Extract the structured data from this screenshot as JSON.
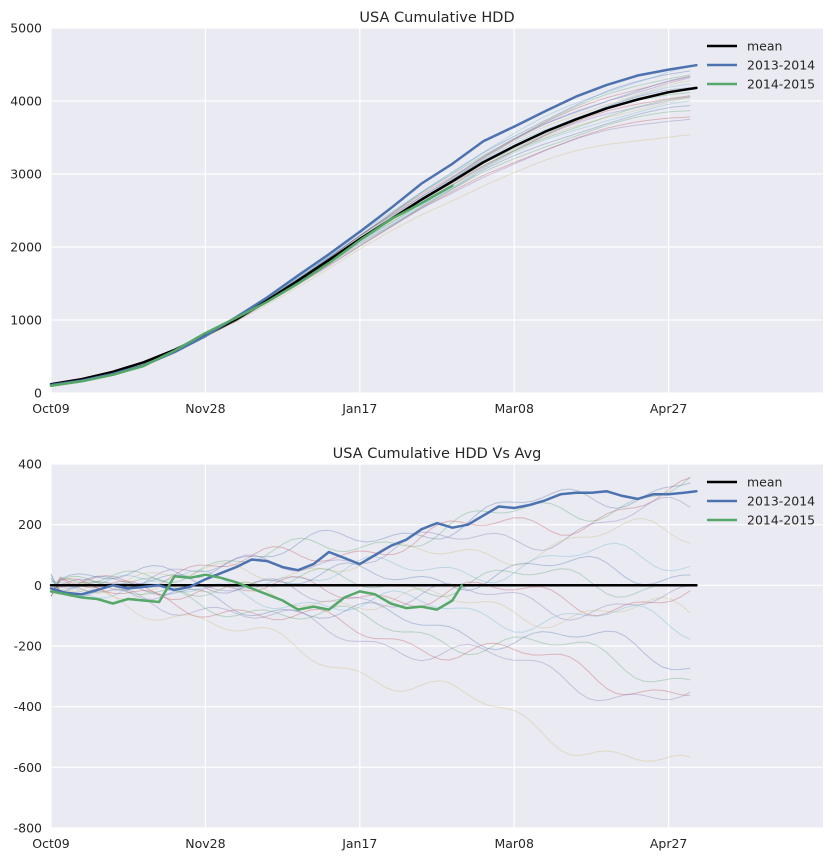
{
  "chart_data": [
    {
      "type": "line",
      "title": "USA Cumulative HDD",
      "xlabel": "",
      "ylabel": "",
      "x_unit": "days since Oct09",
      "xlim": [
        0,
        250
      ],
      "ylim": [
        0,
        5000
      ],
      "xticks": [
        {
          "label": "Oct09",
          "value": 0
        },
        {
          "label": "Nov28",
          "value": 50
        },
        {
          "label": "Jan17",
          "value": 100
        },
        {
          "label": "Mar08",
          "value": 150
        },
        {
          "label": "Apr27",
          "value": 200
        }
      ],
      "yticks": [
        0,
        1000,
        2000,
        3000,
        4000,
        5000
      ],
      "grid": true,
      "legend_position": "top-right",
      "series": [
        {
          "name": "mean",
          "color": "#000000",
          "x": [
            0,
            10,
            20,
            30,
            40,
            50,
            60,
            70,
            80,
            90,
            100,
            110,
            120,
            130,
            140,
            150,
            160,
            170,
            180,
            190,
            200,
            209
          ],
          "values": [
            120,
            190,
            290,
            420,
            590,
            790,
            1010,
            1270,
            1540,
            1820,
            2110,
            2380,
            2650,
            2900,
            3160,
            3380,
            3580,
            3750,
            3900,
            4020,
            4120,
            4180
          ]
        },
        {
          "name": "2013-2014",
          "color": "#4c72b0",
          "x": [
            0,
            10,
            20,
            30,
            40,
            50,
            60,
            70,
            80,
            90,
            100,
            110,
            120,
            130,
            140,
            150,
            160,
            170,
            180,
            190,
            200,
            209
          ],
          "values": [
            110,
            170,
            260,
            380,
            560,
            780,
            1040,
            1310,
            1610,
            1900,
            2210,
            2530,
            2870,
            3140,
            3450,
            3650,
            3860,
            4060,
            4220,
            4350,
            4430,
            4490
          ]
        },
        {
          "name": "2014-2015",
          "color": "#55a868",
          "x": [
            0,
            10,
            20,
            30,
            40,
            50,
            60,
            70,
            80,
            90,
            100,
            110,
            120,
            130
          ],
          "values": [
            100,
            160,
            250,
            370,
            580,
            820,
            1030,
            1250,
            1500,
            1780,
            2090,
            2380,
            2600,
            2840
          ]
        }
      ],
      "background_series_colors": [
        "#4c72b0",
        "#55a868",
        "#c44e52",
        "#8172b2",
        "#ccb974",
        "#64b5cd"
      ],
      "background_series_final_values": [
        4450,
        4400,
        4360,
        4320,
        4270,
        4230,
        4200,
        4150,
        4110,
        4080,
        4040,
        3990,
        3930,
        3880,
        3810,
        3780,
        3550,
        4480,
        4330,
        4050
      ]
    },
    {
      "type": "line",
      "title": "USA Cumulative HDD Vs Avg",
      "xlabel": "",
      "ylabel": "",
      "x_unit": "days since Oct09",
      "xlim": [
        0,
        250
      ],
      "ylim": [
        -800,
        400
      ],
      "xticks": [
        {
          "label": "Oct09",
          "value": 0
        },
        {
          "label": "Nov28",
          "value": 50
        },
        {
          "label": "Jan17",
          "value": 100
        },
        {
          "label": "Mar08",
          "value": 150
        },
        {
          "label": "Apr27",
          "value": 200
        }
      ],
      "yticks": [
        -800,
        -600,
        -400,
        -200,
        0,
        200,
        400
      ],
      "grid": true,
      "legend_position": "top-right",
      "series": [
        {
          "name": "mean",
          "color": "#000000",
          "x": [
            0,
            209
          ],
          "values": [
            0,
            0
          ]
        },
        {
          "name": "2013-2014",
          "color": "#4c72b0",
          "x": [
            0,
            5,
            10,
            15,
            20,
            25,
            30,
            35,
            40,
            45,
            50,
            55,
            60,
            65,
            70,
            75,
            80,
            85,
            90,
            95,
            100,
            105,
            110,
            115,
            120,
            125,
            130,
            135,
            140,
            145,
            150,
            155,
            160,
            165,
            170,
            175,
            180,
            185,
            190,
            195,
            200,
            205,
            209
          ],
          "values": [
            -10,
            -25,
            -30,
            -15,
            0,
            -10,
            -5,
            0,
            -15,
            -5,
            20,
            40,
            60,
            85,
            80,
            60,
            50,
            70,
            110,
            90,
            70,
            100,
            130,
            150,
            185,
            205,
            190,
            200,
            230,
            260,
            255,
            265,
            280,
            300,
            305,
            305,
            310,
            295,
            285,
            300,
            300,
            305,
            310
          ]
        },
        {
          "name": "2014-2015",
          "color": "#55a868",
          "x": [
            0,
            5,
            10,
            15,
            20,
            25,
            30,
            35,
            40,
            45,
            50,
            55,
            60,
            65,
            70,
            75,
            80,
            85,
            90,
            95,
            100,
            105,
            110,
            115,
            120,
            125,
            130,
            133
          ],
          "values": [
            -20,
            -30,
            -40,
            -45,
            -60,
            -45,
            -50,
            -55,
            30,
            25,
            35,
            25,
            10,
            -10,
            -30,
            -50,
            -80,
            -70,
            -80,
            -40,
            -20,
            -30,
            -60,
            -75,
            -70,
            -80,
            -50,
            0
          ]
        }
      ],
      "background_series_final_values": [
        360,
        330,
        290,
        240,
        180,
        100,
        60,
        20,
        -50,
        -70,
        -110,
        -140,
        -240,
        -290,
        -350,
        -390,
        -640
      ]
    }
  ]
}
